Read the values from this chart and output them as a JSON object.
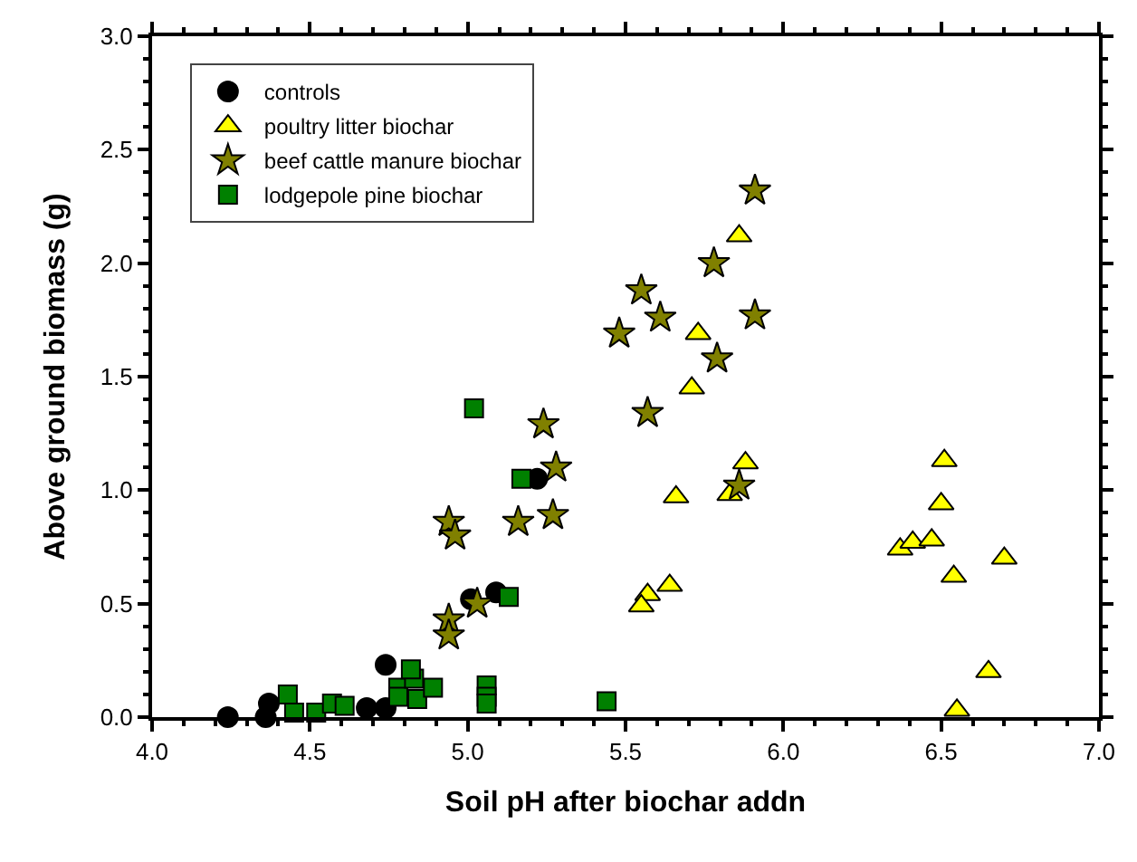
{
  "chart_data": {
    "type": "scatter",
    "xlabel": "Soil pH after biochar addn",
    "ylabel": "Above ground biomass (g)",
    "xlim": [
      4.0,
      7.0
    ],
    "ylim": [
      0.0,
      3.0
    ],
    "xticks": [
      {
        "value": 4.0,
        "label": "4.0"
      },
      {
        "value": 4.5,
        "label": "4.5"
      },
      {
        "value": 5.0,
        "label": "5.0"
      },
      {
        "value": 5.5,
        "label": "5.5"
      },
      {
        "value": 6.0,
        "label": "6.0"
      },
      {
        "value": 6.5,
        "label": "6.5"
      },
      {
        "value": 7.0,
        "label": "7.0"
      }
    ],
    "yticks": [
      {
        "value": 0.0,
        "label": "0.0"
      },
      {
        "value": 0.5,
        "label": "0.5"
      },
      {
        "value": 1.0,
        "label": "1.0"
      },
      {
        "value": 1.5,
        "label": "1.5"
      },
      {
        "value": 2.0,
        "label": "2.0"
      },
      {
        "value": 2.5,
        "label": "2.5"
      },
      {
        "value": 3.0,
        "label": "3.0"
      }
    ],
    "legend": "top left",
    "series": [
      {
        "name": "controls",
        "color": "#000000",
        "marker": "circle",
        "x": [
          4.24,
          4.36,
          4.37,
          4.68,
          4.74,
          4.74,
          5.01,
          5.09,
          5.22
        ],
        "values": [
          0.0,
          0.0,
          0.06,
          0.04,
          0.04,
          0.23,
          0.52,
          0.55,
          1.05
        ]
      },
      {
        "name": "poultry litter biochar",
        "color": "#ffff00",
        "marker": "triangle",
        "x": [
          5.86,
          5.73,
          5.71,
          5.88,
          5.83,
          5.66,
          5.64,
          5.57,
          5.55,
          6.51,
          6.5,
          6.37,
          6.41,
          6.47,
          6.7,
          6.54,
          6.65,
          6.55
        ],
        "values": [
          2.12,
          1.69,
          1.45,
          1.12,
          0.98,
          0.97,
          0.58,
          0.54,
          0.49,
          1.13,
          0.94,
          0.74,
          0.77,
          0.78,
          0.7,
          0.62,
          0.2,
          0.03
        ]
      },
      {
        "name": "beef cattle manure biochar",
        "color": "#808000",
        "marker": "star",
        "x": [
          5.28,
          4.94,
          4.96,
          5.16,
          5.27,
          5.03,
          4.94,
          4.94,
          5.24,
          5.55,
          5.61,
          5.48,
          5.57,
          5.78,
          5.79,
          5.91,
          5.91,
          5.86
        ],
        "values": [
          1.1,
          0.86,
          0.8,
          0.86,
          0.89,
          0.5,
          0.43,
          0.36,
          1.29,
          1.88,
          1.76,
          1.69,
          1.34,
          2.0,
          1.58,
          2.32,
          1.77,
          1.02
        ]
      },
      {
        "name": "lodgepole pine biochar",
        "color": "#008000",
        "marker": "square",
        "x": [
          4.43,
          4.45,
          4.52,
          4.57,
          4.61,
          4.78,
          4.78,
          4.83,
          4.84,
          4.89,
          4.82,
          5.06,
          5.06,
          5.06,
          5.44,
          5.17,
          5.13,
          5.02
        ],
        "values": [
          0.1,
          0.02,
          0.02,
          0.06,
          0.05,
          0.13,
          0.09,
          0.17,
          0.08,
          0.13,
          0.21,
          0.14,
          0.09,
          0.06,
          0.07,
          1.05,
          0.53,
          1.36
        ]
      }
    ]
  }
}
